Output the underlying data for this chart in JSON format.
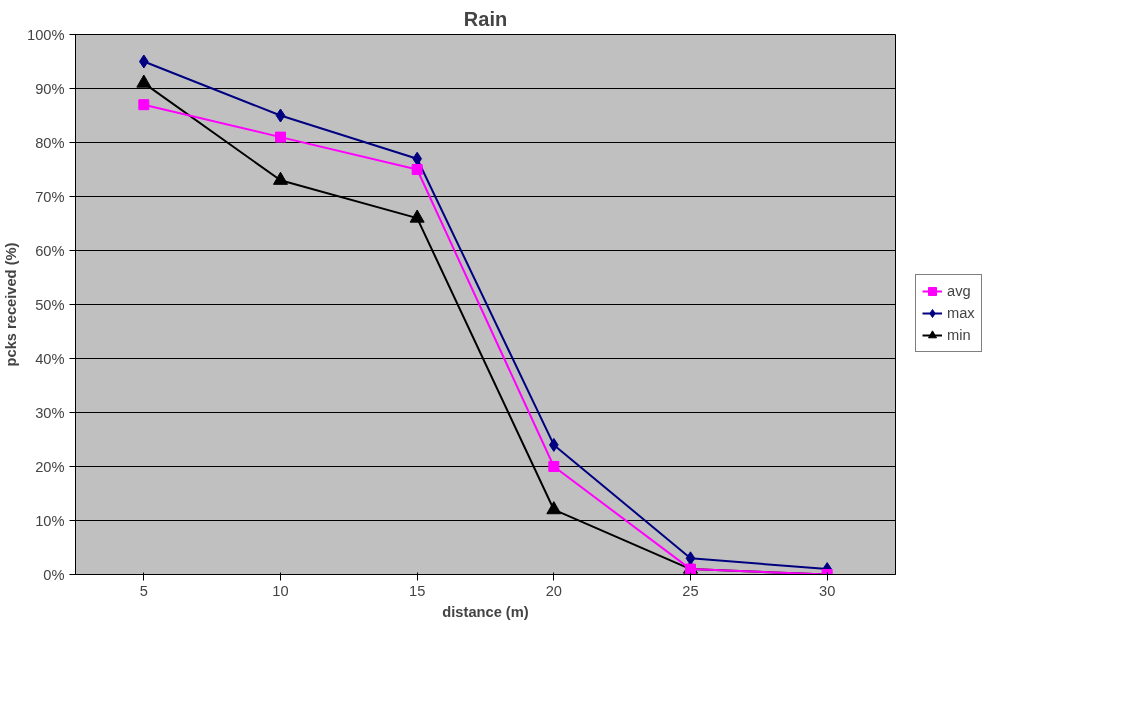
{
  "chart_data": {
    "type": "line",
    "title": "Rain",
    "xlabel": "distance (m)",
    "ylabel": "pcks received (%)",
    "categories": [
      "5",
      "10",
      "15",
      "20",
      "25",
      "30"
    ],
    "series": [
      {
        "name": "avg",
        "color": "#ff00ff",
        "marker": "square",
        "values": [
          87,
          81,
          75,
          20,
          1,
          0
        ]
      },
      {
        "name": "max",
        "color": "#000080",
        "marker": "diamond",
        "values": [
          95,
          85,
          77,
          24,
          3,
          1
        ]
      },
      {
        "name": "min",
        "color": "#000000",
        "marker": "triangle",
        "values": [
          91,
          73,
          66,
          12,
          1,
          0
        ]
      }
    ],
    "ylim": [
      0,
      100
    ],
    "yticks": [
      {
        "value": 0,
        "label": "0%"
      },
      {
        "value": 10,
        "label": "10%"
      },
      {
        "value": 20,
        "label": "20%"
      },
      {
        "value": 30,
        "label": "30%"
      },
      {
        "value": 40,
        "label": "40%"
      },
      {
        "value": 50,
        "label": "50%"
      },
      {
        "value": 60,
        "label": "60%"
      },
      {
        "value": 70,
        "label": "70%"
      },
      {
        "value": 80,
        "label": "80%"
      },
      {
        "value": 90,
        "label": "90%"
      },
      {
        "value": 100,
        "label": "100%"
      }
    ],
    "grid": "y",
    "legend": "right",
    "line_style": "solid"
  }
}
